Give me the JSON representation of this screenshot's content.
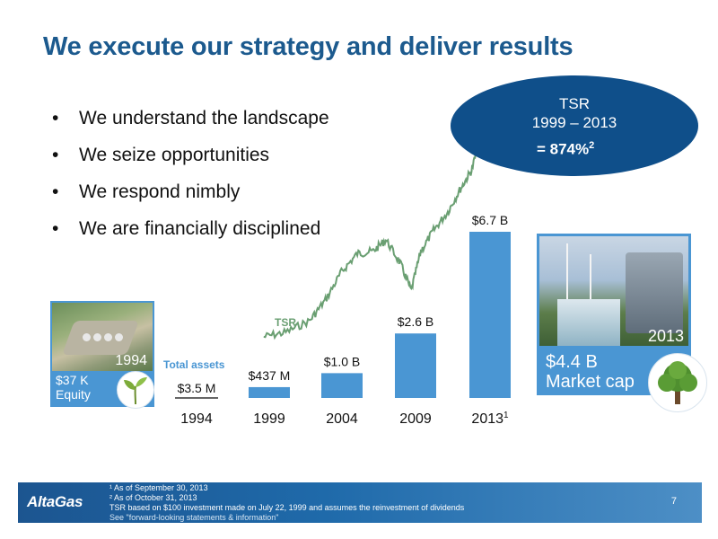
{
  "title": "We execute our strategy and deliver results",
  "bullets": [
    "We understand the landscape",
    "We seize opportunities",
    "We respond nimbly",
    "We are financially disciplined"
  ],
  "chart_data": {
    "type": "bar",
    "series_label": "Total assets",
    "categories": [
      "1994",
      "1999",
      "2004",
      "2009",
      "2013"
    ],
    "category_superscripts": [
      "",
      "",
      "",
      "",
      "1"
    ],
    "values_billions": [
      0.0035,
      0.437,
      1.0,
      2.6,
      6.7
    ],
    "data_labels": [
      "$3.5 M",
      "$437 M",
      "$1.0 B",
      "$2.6 B",
      "$6.7 B"
    ],
    "bar_color": "#4a96d3",
    "ylim": [
      0,
      7.5
    ],
    "overlay_line": {
      "name": "TSR",
      "color": "#6a9f72",
      "description_points": [
        [
          1999.6,
          100
        ],
        [
          2001,
          120
        ],
        [
          2002.5,
          170
        ],
        [
          2003.5,
          260
        ],
        [
          2004.5,
          380
        ],
        [
          2005.5,
          460
        ],
        [
          2006.5,
          470
        ],
        [
          2007.3,
          520
        ],
        [
          2008.2,
          420
        ],
        [
          2008.9,
          300
        ],
        [
          2009.5,
          470
        ],
        [
          2010.3,
          560
        ],
        [
          2011.2,
          640
        ],
        [
          2012,
          740
        ],
        [
          2012.7,
          820
        ],
        [
          2013.3,
          974
        ]
      ]
    }
  },
  "tsr_callout": {
    "line1": "TSR",
    "line2": "1999 – 2013",
    "value": "= 874%",
    "value_superscript": "2",
    "color": "#0f4f8a"
  },
  "left_card": {
    "year": "1994",
    "value_line1": "$37 K",
    "value_line2": "Equity"
  },
  "right_card": {
    "year": "2013",
    "value_line1": "$4.4 B",
    "value_line2": "Market cap"
  },
  "footer": {
    "logo": "AltaGas",
    "notes": [
      "¹ As of September 30, 2013",
      "² As of October 31, 2013",
      "TSR based on $100 investment  made on July 22, 1999 and assumes the reinvestment of dividends"
    ],
    "see_link": "See \"forward-looking statements & information\"",
    "page_number": "7"
  }
}
